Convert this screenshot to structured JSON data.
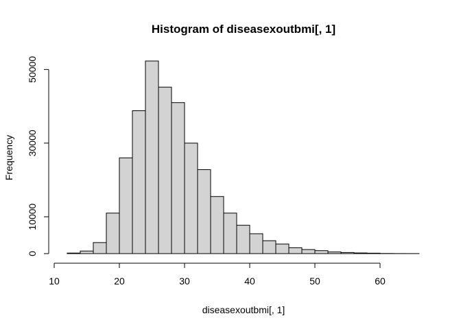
{
  "chart_data": {
    "type": "bar",
    "title": "Histogram of diseasexoutbmi[, 1]",
    "xlabel": "diseasexoutbmi[, 1]",
    "ylabel": "Frequency",
    "xlim": [
      10,
      66
    ],
    "ylim": [
      0,
      52300
    ],
    "bin_width": 2,
    "bins": [
      {
        "start": 12,
        "end": 14,
        "value": 150
      },
      {
        "start": 14,
        "end": 16,
        "value": 700
      },
      {
        "start": 16,
        "end": 18,
        "value": 3000
      },
      {
        "start": 18,
        "end": 20,
        "value": 11000
      },
      {
        "start": 20,
        "end": 22,
        "value": 26000
      },
      {
        "start": 22,
        "end": 24,
        "value": 38800
      },
      {
        "start": 24,
        "end": 26,
        "value": 52300
      },
      {
        "start": 26,
        "end": 28,
        "value": 45200
      },
      {
        "start": 28,
        "end": 30,
        "value": 41000
      },
      {
        "start": 30,
        "end": 32,
        "value": 30000
      },
      {
        "start": 32,
        "end": 34,
        "value": 22800
      },
      {
        "start": 34,
        "end": 36,
        "value": 15500
      },
      {
        "start": 36,
        "end": 38,
        "value": 11000
      },
      {
        "start": 38,
        "end": 40,
        "value": 7700
      },
      {
        "start": 40,
        "end": 42,
        "value": 5400
      },
      {
        "start": 42,
        "end": 44,
        "value": 3500
      },
      {
        "start": 44,
        "end": 46,
        "value": 2600
      },
      {
        "start": 46,
        "end": 48,
        "value": 1600
      },
      {
        "start": 48,
        "end": 50,
        "value": 1100
      },
      {
        "start": 50,
        "end": 52,
        "value": 800
      },
      {
        "start": 52,
        "end": 54,
        "value": 450
      },
      {
        "start": 54,
        "end": 56,
        "value": 300
      },
      {
        "start": 56,
        "end": 58,
        "value": 180
      },
      {
        "start": 58,
        "end": 60,
        "value": 120
      },
      {
        "start": 60,
        "end": 62,
        "value": 40
      },
      {
        "start": 62,
        "end": 64,
        "value": 20
      },
      {
        "start": 64,
        "end": 66,
        "value": 10
      }
    ],
    "x_ticks": [
      10,
      20,
      30,
      40,
      50,
      60
    ],
    "x_tick_labels": [
      "10",
      "20",
      "30",
      "40",
      "50",
      "60"
    ],
    "y_ticks": [
      0,
      10000,
      30000,
      50000
    ],
    "y_tick_labels": [
      "0",
      "10000",
      "30000",
      "50000"
    ],
    "bar_fill": "#d3d3d3",
    "bar_stroke": "#000000",
    "grid": false
  }
}
